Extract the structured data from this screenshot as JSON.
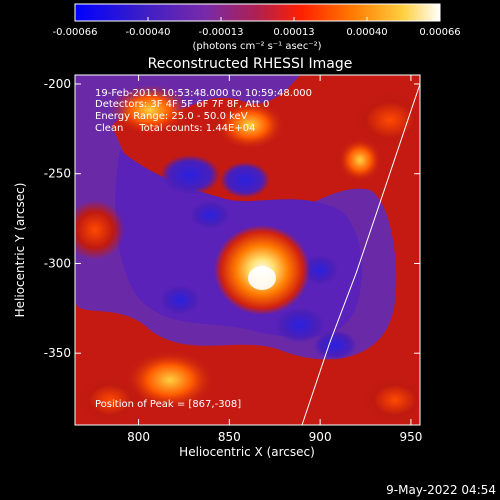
{
  "colorbar": {
    "ticks": [
      "-0.00066",
      "-0.00040",
      "-0.00013",
      "0.00013",
      "0.00040",
      "0.00066"
    ],
    "unit_label": "(photons cm⁻² s⁻¹ asec⁻²)",
    "range": [
      -0.00066,
      0.00066
    ],
    "colors": [
      "#0000ff",
      "#4b1fb0",
      "#8a2a9a",
      "#c02040",
      "#ff2a00",
      "#ff8a00",
      "#ffe040",
      "#ffffff"
    ]
  },
  "chart_data": {
    "type": "heatmap",
    "title": "Reconstructed RHESSI Image",
    "xlabel": "Heliocentric X (arcsec)",
    "ylabel": "Heliocentric Y (arcsec)",
    "xlim": [
      765,
      955
    ],
    "ylim": [
      -390,
      -195
    ],
    "xticks": [
      800,
      850,
      900,
      950
    ],
    "yticks": [
      -200,
      -250,
      -300,
      -350
    ],
    "annotations": {
      "date_range": "19-Feb-2011 10:53:48.000 to 10:59:48.000",
      "detectors": "Detectors: 3F 4F 5F 6F 7F 8F, Att 0",
      "energy_range": "Energy Range: 25.0 - 50.0 keV",
      "method_counts": "Clean     Total counts: 1.44E+04",
      "peak": "Position of Peak = [867,-308]"
    },
    "peak_position": [
      867,
      -308
    ],
    "limb_curve": [
      [
        890,
        -390
      ],
      [
        905,
        -345
      ],
      [
        920,
        -305
      ],
      [
        935,
        -260
      ],
      [
        950,
        -215
      ],
      [
        955,
        -200
      ]
    ]
  },
  "footer": {
    "timestamp": "9-May-2022 04:54"
  }
}
